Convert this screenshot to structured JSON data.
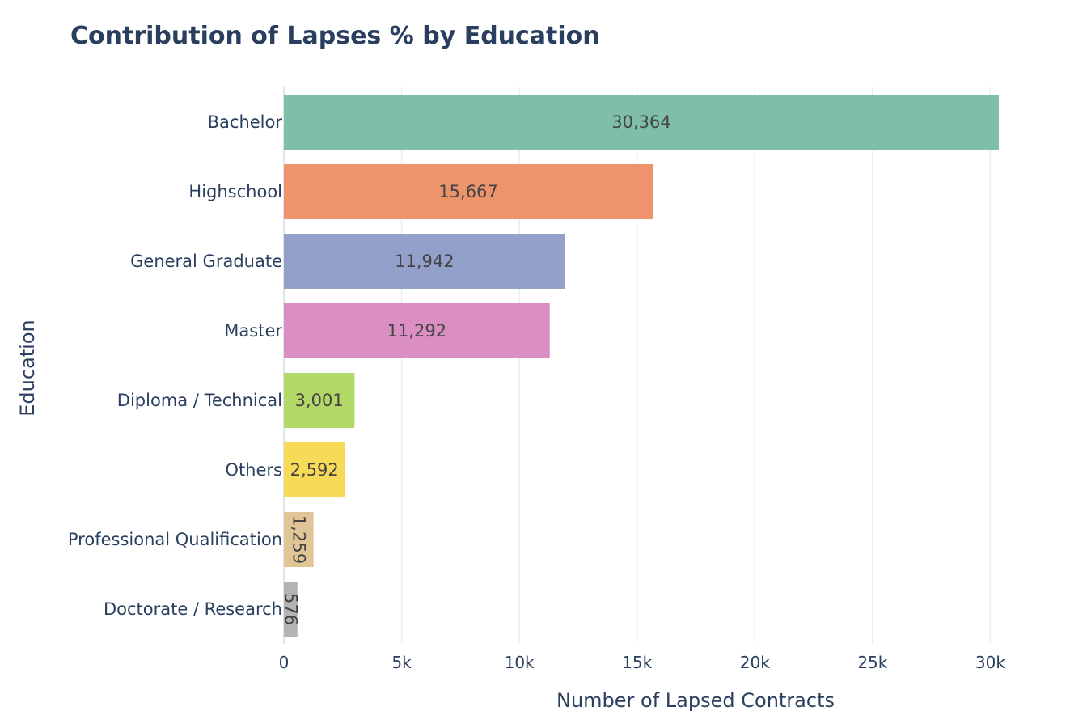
{
  "chart_data": {
    "type": "bar",
    "orientation": "horizontal",
    "title": "Contribution of Lapses % by Education",
    "xlabel": "Number of Lapsed Contracts",
    "ylabel": "Education",
    "xlim": [
      0,
      30364
    ],
    "xticks": [
      0,
      5000,
      10000,
      15000,
      20000,
      25000,
      30000
    ],
    "xtick_labels": [
      "0",
      "5k",
      "10k",
      "15k",
      "20k",
      "25k",
      "30k"
    ],
    "grid": true,
    "categories": [
      "Bachelor",
      "Highschool",
      "General Graduate",
      "Master",
      "Diploma / Technical",
      "Others",
      "Professional Qualification",
      "Doctorate / Research"
    ],
    "values": [
      30364,
      15667,
      11942,
      11292,
      3001,
      2592,
      1259,
      576
    ],
    "data_labels": [
      "30,364",
      "15,667",
      "11,942",
      "11,292",
      "3,001",
      "2,592",
      "1,259",
      "576"
    ],
    "colors": [
      "#7fbfa8",
      "#ed946c",
      "#93a0c9",
      "#da8ec1",
      "#b2d967",
      "#f8da59",
      "#e2c596",
      "#b3b3b3"
    ]
  }
}
